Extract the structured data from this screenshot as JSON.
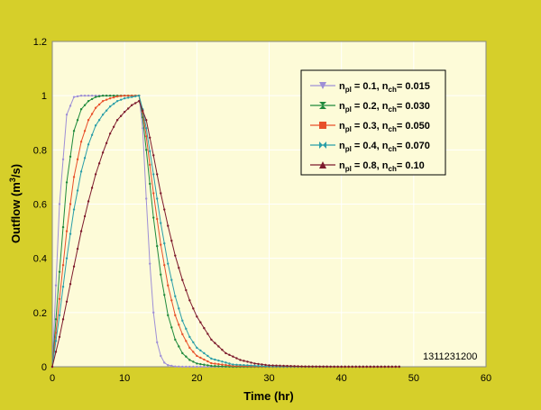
{
  "chart_data": {
    "type": "line",
    "xlabel": "Time (hr)",
    "ylabel": "Outflow (m³/s)",
    "ylabel_parts": [
      "Outflow (m",
      "3",
      "/s)"
    ],
    "xlim": [
      0,
      60
    ],
    "ylim": [
      0,
      1.2
    ],
    "xticks": [
      "0",
      "10",
      "20",
      "30",
      "40",
      "50",
      "60"
    ],
    "yticks": [
      "0",
      "0.2",
      "0.4",
      "0.6",
      "0.8",
      "1",
      "1.2"
    ],
    "grid": true,
    "legend_position": "top-right",
    "annotation": "1311231200",
    "colors": {
      "background": "#d6cf2a",
      "plot_area": "#fdfbd8",
      "grid": "#ffffff"
    },
    "series": [
      {
        "label_main": "n",
        "label_sub1": "pl",
        "label_mid": " = 0.1, n",
        "label_sub2": "ch",
        "label_end": "= 0.015",
        "color": "#9e8fd6",
        "marker": "triangle-down",
        "x": [
          0,
          1,
          2,
          3,
          4,
          5,
          6,
          8,
          10,
          12,
          12.5,
          13,
          13.5,
          14,
          14.5,
          15,
          15.5,
          16,
          17,
          18,
          20,
          25,
          30,
          40,
          48
        ],
        "y": [
          0,
          0.6,
          0.93,
          0.995,
          1.0,
          1.0,
          1.0,
          1.0,
          1.0,
          1.0,
          0.88,
          0.62,
          0.38,
          0.2,
          0.09,
          0.04,
          0.015,
          0.006,
          0.001,
          0,
          0,
          0,
          0,
          0,
          0
        ]
      },
      {
        "label_main": "n",
        "label_sub1": "pl",
        "label_mid": " = 0.2, n",
        "label_sub2": "ch",
        "label_end": "= 0.030",
        "color": "#1f8a3c",
        "marker": "hourglass",
        "x": [
          0,
          1,
          2,
          3,
          4,
          5,
          6,
          7,
          8,
          10,
          12,
          12.5,
          13,
          14,
          15,
          16,
          17,
          18,
          19,
          20,
          22,
          25,
          30,
          40,
          48
        ],
        "y": [
          0,
          0.35,
          0.68,
          0.87,
          0.95,
          0.98,
          0.995,
          1.0,
          1.0,
          1.0,
          1.0,
          0.92,
          0.8,
          0.55,
          0.34,
          0.19,
          0.1,
          0.05,
          0.025,
          0.012,
          0.003,
          0,
          0,
          0,
          0
        ]
      },
      {
        "label_main": "n",
        "label_sub1": "pl",
        "label_mid": " = 0.3, n",
        "label_sub2": "ch",
        "label_end": "= 0.050",
        "color": "#e8502a",
        "marker": "square",
        "x": [
          0,
          1,
          2,
          3,
          4,
          5,
          6,
          7,
          8,
          9,
          10,
          12,
          12.5,
          13,
          14,
          15,
          16,
          17,
          18,
          19,
          20,
          22,
          25,
          30,
          40,
          48
        ],
        "y": [
          0,
          0.25,
          0.5,
          0.7,
          0.83,
          0.91,
          0.955,
          0.98,
          0.99,
          0.997,
          1.0,
          1.0,
          0.94,
          0.85,
          0.64,
          0.45,
          0.3,
          0.19,
          0.12,
          0.07,
          0.04,
          0.013,
          0.003,
          0,
          0,
          0
        ]
      },
      {
        "label_main": "n",
        "label_sub1": "pl",
        "label_mid": " = 0.4, n",
        "label_sub2": "ch",
        "label_end": "= 0.070",
        "color": "#2a9ea8",
        "marker": "bowtie",
        "x": [
          0,
          1,
          2,
          3,
          4,
          5,
          6,
          7,
          8,
          9,
          10,
          11,
          12,
          12.5,
          13,
          14,
          15,
          16,
          17,
          18,
          19,
          20,
          22,
          25,
          30,
          40,
          48
        ],
        "y": [
          0,
          0.19,
          0.4,
          0.58,
          0.72,
          0.82,
          0.89,
          0.93,
          0.96,
          0.98,
          0.99,
          0.995,
          1.0,
          0.95,
          0.88,
          0.71,
          0.53,
          0.38,
          0.26,
          0.17,
          0.11,
          0.07,
          0.03,
          0.008,
          0.001,
          0,
          0
        ]
      },
      {
        "label_main": "n",
        "label_sub1": "pl",
        "label_mid": " = 0.8, n",
        "label_sub2": "ch",
        "label_end": "= 0.10",
        "color": "#7d1a2c",
        "marker": "triangle-up",
        "x": [
          0,
          1,
          2,
          3,
          4,
          5,
          6,
          7,
          8,
          9,
          10,
          11,
          12,
          13,
          14,
          15,
          16,
          17,
          18,
          19,
          20,
          22,
          24,
          26,
          28,
          30,
          35,
          40,
          48
        ],
        "y": [
          0,
          0.11,
          0.24,
          0.37,
          0.5,
          0.61,
          0.71,
          0.79,
          0.86,
          0.91,
          0.94,
          0.965,
          0.98,
          0.91,
          0.78,
          0.64,
          0.52,
          0.41,
          0.32,
          0.245,
          0.185,
          0.1,
          0.05,
          0.025,
          0.012,
          0.005,
          0.001,
          0,
          0
        ]
      }
    ]
  }
}
